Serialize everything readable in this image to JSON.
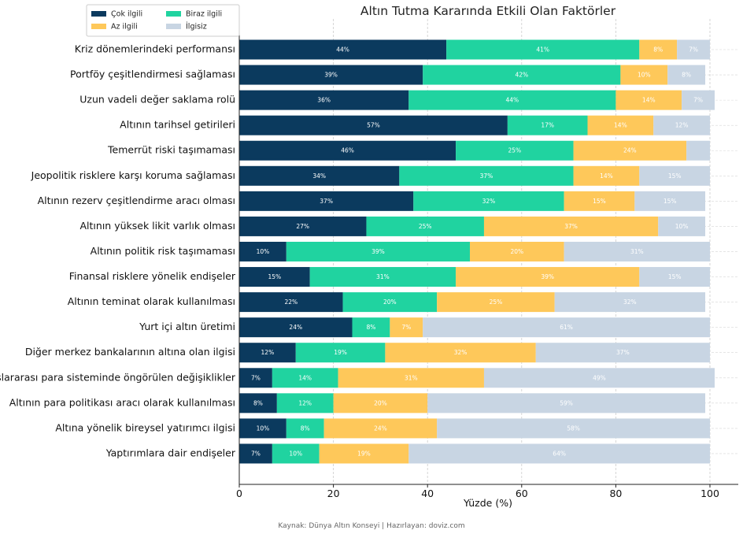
{
  "chart_data": {
    "type": "bar",
    "orientation": "horizontal",
    "stacked": true,
    "title": "Altın Tutma Kararında Etkili Olan Faktörler",
    "xlabel": "Yüzde (%)",
    "ylabel": "",
    "xlim": [
      0,
      106
    ],
    "xticks": [
      0,
      20,
      40,
      60,
      80,
      100
    ],
    "grid": true,
    "legend_position": "top-right",
    "categories": [
      "Kriz dönemlerindeki performansı",
      "Portföy çeşitlendirmesi sağlaması",
      "Uzun vadeli değer saklama rolü",
      "Altının tarihsel getirileri",
      "Temerrüt riski taşımaması",
      "Jeopolitik risklere karşı koruma sağlaması",
      "Altının rezerv çeşitlendirme aracı olması",
      "Altının yüksek likit varlık olması",
      "Altının politik risk taşımaması",
      "Finansal risklere yönelik endişeler",
      "Altının teminat olarak kullanılması",
      "Yurt içi altın üretimi",
      "Diğer merkez bankalarının altına olan ilgisi",
      "Uluslararası para sisteminde öngörülen değişiklikler",
      "Altının para politikası aracı olarak kullanılması",
      "Altına yönelik bireysel yatırımcı ilgisi",
      "Yaptırımlara dair endişeler"
    ],
    "series": [
      {
        "name": "Çok ilgili",
        "color": "#0b3a5e",
        "values": [
          44,
          39,
          36,
          57,
          46,
          34,
          37,
          27,
          10,
          15,
          22,
          24,
          12,
          7,
          8,
          10,
          7
        ]
      },
      {
        "name": "Biraz ilgili",
        "color": "#20d3a0",
        "values": [
          41,
          42,
          44,
          17,
          25,
          37,
          32,
          25,
          39,
          31,
          20,
          8,
          19,
          14,
          12,
          8,
          10
        ]
      },
      {
        "name": "Az ilgili",
        "color": "#fec85a",
        "values": [
          8,
          10,
          14,
          14,
          24,
          14,
          15,
          37,
          20,
          39,
          25,
          7,
          32,
          31,
          20,
          24,
          19
        ]
      },
      {
        "name": "İlgisiz",
        "color": "#c8d5e3",
        "values": [
          7,
          8,
          7,
          12,
          5,
          15,
          15,
          10,
          31,
          15,
          32,
          61,
          37,
          49,
          59,
          58,
          64
        ]
      }
    ]
  },
  "source_note": "Kaynak: Dünya Altın Konseyi | Hazırlayan: doviz.com"
}
